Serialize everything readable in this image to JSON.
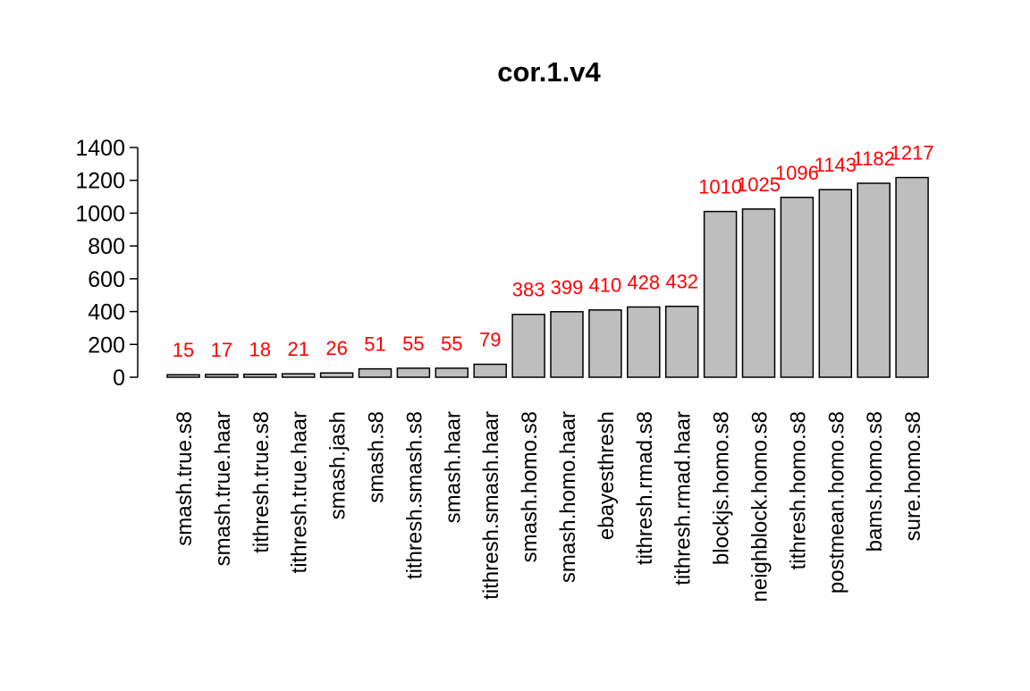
{
  "chart_data": {
    "type": "bar",
    "title": "cor.1.v4",
    "xlabel": "",
    "ylabel": "",
    "ylim": [
      0,
      1400
    ],
    "yticks": [
      0,
      200,
      400,
      600,
      800,
      1000,
      1200,
      1400
    ],
    "grid": false,
    "categories": [
      "smash.true.s8",
      "smash.true.haar",
      "tithresh.true.s8",
      "tithresh.true.haar",
      "smash.jash",
      "smash.s8",
      "tithresh.smash.s8",
      "smash.haar",
      "tithresh.smash.haar",
      "smash.homo.s8",
      "smash.homo.haar",
      "ebayesthresh",
      "tithresh.rmad.s8",
      "tithresh.rmad.haar",
      "blockjs.homo.s8",
      "neighblock.homo.s8",
      "tithresh.homo.s8",
      "postmean.homo.s8",
      "bams.homo.s8",
      "sure.homo.s8"
    ],
    "values": [
      15,
      17,
      18,
      21,
      26,
      51,
      55,
      55,
      79,
      383,
      399,
      410,
      428,
      432,
      1010,
      1025,
      1096,
      1143,
      1182,
      1217
    ],
    "data_labels": [
      "15",
      "17",
      "18",
      "21",
      "26",
      "51",
      "55",
      "55",
      "79",
      "383",
      "399",
      "410",
      "428",
      "432",
      "1010",
      "1025",
      "1096",
      "1143",
      "1182",
      "1217"
    ],
    "colors": {
      "bar_fill": "#bebebe",
      "bar_stroke": "#000000",
      "label": "#ff0000",
      "text": "#000000"
    }
  }
}
